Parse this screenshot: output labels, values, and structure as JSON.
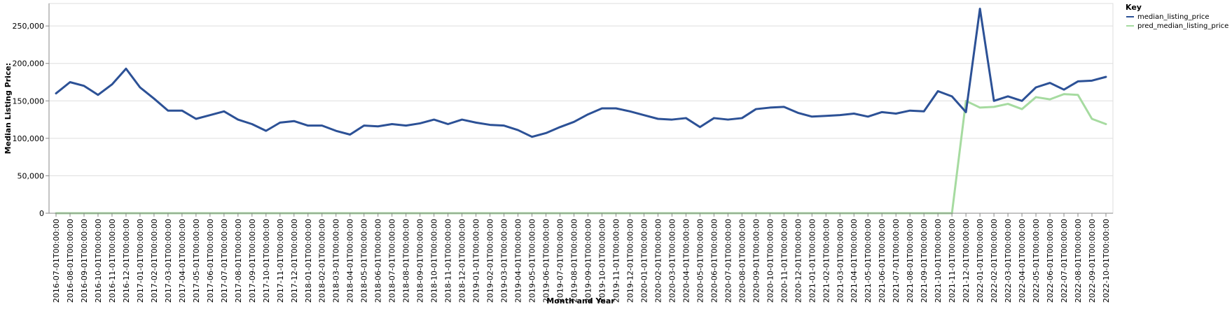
{
  "chart_data": {
    "type": "line",
    "xlabel": "Month and Year",
    "ylabel": "Median Listing Price:",
    "ylim": [
      0,
      280000
    ],
    "y_ticks": [
      0,
      50000,
      100000,
      150000,
      200000,
      250000
    ],
    "y_tick_labels": [
      "0",
      "50,000",
      "100,000",
      "150,000",
      "200,000",
      "250,000"
    ],
    "grid": true,
    "legend": {
      "title": "Key",
      "placement": "top-right"
    },
    "categories": [
      "2016-07-01T00:00:00",
      "2016-08-01T00:00:00",
      "2016-09-01T00:00:00",
      "2016-10-01T00:00:00",
      "2016-11-01T00:00:00",
      "2016-12-01T00:00:00",
      "2017-01-01T00:00:00",
      "2017-02-01T00:00:00",
      "2017-03-01T00:00:00",
      "2017-04-01T00:00:00",
      "2017-05-01T00:00:00",
      "2017-06-01T00:00:00",
      "2017-07-01T00:00:00",
      "2017-08-01T00:00:00",
      "2017-09-01T00:00:00",
      "2017-10-01T00:00:00",
      "2017-11-01T00:00:00",
      "2017-12-01T00:00:00",
      "2018-01-01T00:00:00",
      "2018-02-01T00:00:00",
      "2018-03-01T00:00:00",
      "2018-04-01T00:00:00",
      "2018-05-01T00:00:00",
      "2018-06-01T00:00:00",
      "2018-07-01T00:00:00",
      "2018-08-01T00:00:00",
      "2018-09-01T00:00:00",
      "2018-10-01T00:00:00",
      "2018-11-01T00:00:00",
      "2018-12-01T00:00:00",
      "2019-01-01T00:00:00",
      "2019-02-01T00:00:00",
      "2019-03-01T00:00:00",
      "2019-04-01T00:00:00",
      "2019-05-01T00:00:00",
      "2019-06-01T00:00:00",
      "2019-07-01T00:00:00",
      "2019-08-01T00:00:00",
      "2019-09-01T00:00:00",
      "2019-10-01T00:00:00",
      "2019-11-01T00:00:00",
      "2019-12-01T00:00:00",
      "2020-01-01T00:00:00",
      "2020-02-01T00:00:00",
      "2020-03-01T00:00:00",
      "2020-04-01T00:00:00",
      "2020-05-01T00:00:00",
      "2020-06-01T00:00:00",
      "2020-07-01T00:00:00",
      "2020-08-01T00:00:00",
      "2020-09-01T00:00:00",
      "2020-10-01T00:00:00",
      "2020-11-01T00:00:00",
      "2020-12-01T00:00:00",
      "2021-01-01T00:00:00",
      "2021-02-01T00:00:00",
      "2021-03-01T00:00:00",
      "2021-04-01T00:00:00",
      "2021-05-01T00:00:00",
      "2021-06-01T00:00:00",
      "2021-07-01T00:00:00",
      "2021-08-01T00:00:00",
      "2021-09-01T00:00:00",
      "2021-10-01T00:00:00",
      "2021-11-01T00:00:00",
      "2021-12-01T00:00:00",
      "2022-01-01T00:00:00",
      "2022-02-01T00:00:00",
      "2022-03-01T00:00:00",
      "2022-04-01T00:00:00",
      "2022-05-01T00:00:00",
      "2022-06-01T00:00:00",
      "2022-07-01T00:00:00",
      "2022-08-01T00:00:00",
      "2022-09-01T00:00:00",
      "2022-10-01T00:00:00"
    ],
    "series": [
      {
        "name": "median_listing_price",
        "color": "#2c5196",
        "values": [
          160000,
          175000,
          170000,
          158000,
          172000,
          193000,
          168000,
          153000,
          137000,
          137000,
          126000,
          131000,
          136000,
          125000,
          119000,
          110000,
          121000,
          123000,
          117000,
          117000,
          110000,
          105000,
          117000,
          116000,
          119000,
          117000,
          120000,
          125000,
          119000,
          125000,
          121000,
          118000,
          117000,
          111000,
          102000,
          107000,
          115000,
          122000,
          132000,
          140000,
          140000,
          136000,
          131000,
          126000,
          125000,
          127000,
          115000,
          127000,
          125000,
          127000,
          139000,
          141000,
          142000,
          134000,
          129000,
          130000,
          131000,
          133000,
          129000,
          135000,
          133000,
          137000,
          136000,
          163000,
          156000,
          135000,
          273000,
          150000,
          156000,
          150000,
          168000,
          174000,
          165000,
          176000,
          177000,
          182000
        ]
      },
      {
        "name": "pred_median_listing_price",
        "color": "#a6dba0",
        "values": [
          0,
          0,
          0,
          0,
          0,
          0,
          0,
          0,
          0,
          0,
          0,
          0,
          0,
          0,
          0,
          0,
          0,
          0,
          0,
          0,
          0,
          0,
          0,
          0,
          0,
          0,
          0,
          0,
          0,
          0,
          0,
          0,
          0,
          0,
          0,
          0,
          0,
          0,
          0,
          0,
          0,
          0,
          0,
          0,
          0,
          0,
          0,
          0,
          0,
          0,
          0,
          0,
          0,
          0,
          0,
          0,
          0,
          0,
          0,
          0,
          0,
          0,
          0,
          0,
          0,
          150000,
          141000,
          142000,
          146000,
          139000,
          155000,
          152000,
          159000,
          158000,
          126000,
          119000
        ]
      }
    ]
  }
}
